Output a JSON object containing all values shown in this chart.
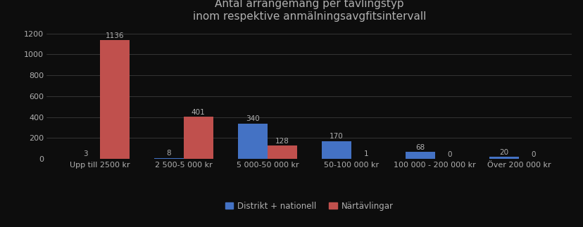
{
  "title": "Antal arrangemang per tävlingstyp\ninom respektive anmälningsavgfitsintervall",
  "categories": [
    "Upp till 2500 kr",
    "2 500-5 000 kr",
    "5 000-50 000 kr",
    "50-100 000 kr",
    "100 000 - 200 000 kr",
    "Över 200 000 kr"
  ],
  "distrikt": [
    3,
    8,
    340,
    170,
    68,
    20
  ],
  "nartavlingar": [
    1136,
    401,
    128,
    1,
    0,
    0
  ],
  "distrikt_color": "#4472c4",
  "nartavlingar_color": "#c0504d",
  "background_color": "#0d0d0d",
  "text_color": "#b0b0b0",
  "grid_color": "#444444",
  "ylim": [
    0,
    1260
  ],
  "yticks": [
    0,
    200,
    400,
    600,
    800,
    1000,
    1200
  ],
  "legend_distrikt": "Distrikt + nationell",
  "legend_nartavlingar": "Närtävlingar",
  "bar_width": 0.35,
  "title_fontsize": 11,
  "label_fontsize": 7.5,
  "tick_fontsize": 8,
  "legend_fontsize": 8.5
}
